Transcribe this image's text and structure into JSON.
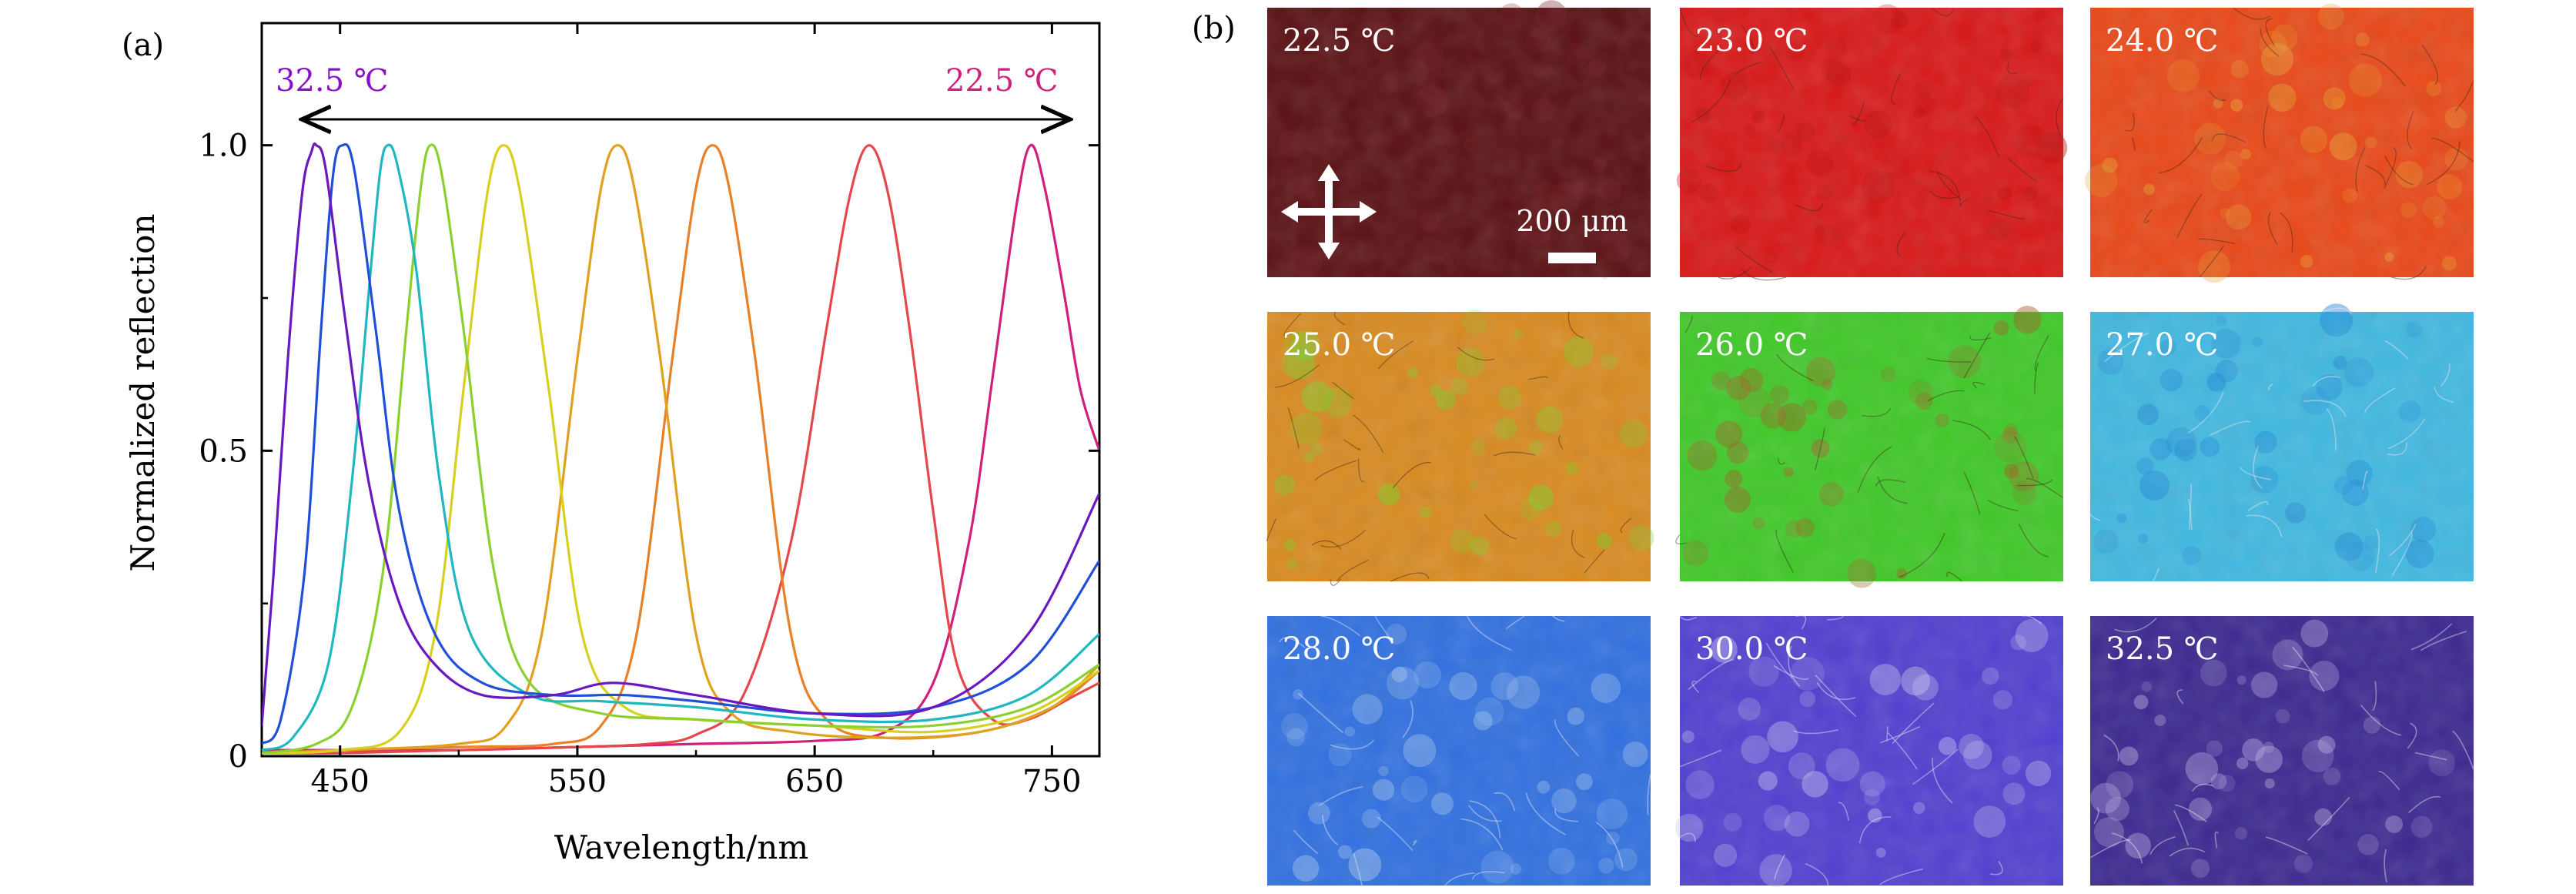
{
  "panel_a": {
    "label": "(a)",
    "annotation_left": "32.5 ℃",
    "annotation_right": "22.5 ℃",
    "annotation_left_color": "#8A10C8",
    "annotation_right_color": "#D0207C"
  },
  "chart_data": {
    "type": "line",
    "xlabel": "Wavelength/nm",
    "ylabel": "Normalized reflection",
    "xlim": [
      417,
      770
    ],
    "ylim": [
      0,
      1.2
    ],
    "xticks": [
      450,
      550,
      650,
      750
    ],
    "yticks": [
      0,
      0.5,
      1.0
    ],
    "ytick_labels": [
      "0",
      "0.5",
      "1.0"
    ],
    "grid": false,
    "legend": "none",
    "series": [
      {
        "color": "#D0207C",
        "peak": 741,
        "width": 17,
        "tail_left": 0.01,
        "tail_right_start": 0.5,
        "bump": 0.0,
        "x": [
          417,
          450,
          500,
          550,
          600,
          650,
          680,
          700,
          715,
          725,
          735,
          741,
          747,
          755,
          762,
          770
        ],
        "y": [
          0.01,
          0.01,
          0.01,
          0.015,
          0.02,
          0.025,
          0.04,
          0.12,
          0.35,
          0.62,
          0.9,
          1.0,
          0.93,
          0.76,
          0.6,
          0.5
        ]
      },
      {
        "color": "#E5484A",
        "peak": 673,
        "x": [
          417,
          450,
          500,
          550,
          580,
          600,
          620,
          640,
          655,
          665,
          673,
          681,
          690,
          700,
          710,
          725,
          740,
          760,
          770
        ],
        "y": [
          0.005,
          0.005,
          0.01,
          0.015,
          0.02,
          0.035,
          0.1,
          0.35,
          0.7,
          0.92,
          1.0,
          0.92,
          0.7,
          0.4,
          0.15,
          0.06,
          0.06,
          0.1,
          0.12
        ]
      },
      {
        "color": "#E88028",
        "peak": 607,
        "x": [
          417,
          450,
          500,
          540,
          560,
          575,
          590,
          600,
          607,
          614,
          625,
          640,
          655,
          680,
          720,
          750,
          770
        ],
        "y": [
          0.005,
          0.01,
          0.015,
          0.02,
          0.05,
          0.2,
          0.65,
          0.93,
          1.0,
          0.93,
          0.65,
          0.2,
          0.06,
          0.03,
          0.04,
          0.08,
          0.14
        ]
      },
      {
        "color": "#E0A020",
        "peak": 567,
        "x": [
          417,
          450,
          500,
          520,
          535,
          550,
          560,
          567,
          574,
          585,
          600,
          615,
          640,
          680,
          720,
          750,
          770
        ],
        "y": [
          0.005,
          0.01,
          0.02,
          0.05,
          0.2,
          0.65,
          0.93,
          1.0,
          0.93,
          0.65,
          0.2,
          0.07,
          0.04,
          0.03,
          0.04,
          0.08,
          0.15
        ]
      },
      {
        "color": "#D8D020",
        "peak": 519,
        "x": [
          417,
          450,
          475,
          490,
          502,
          512,
          519,
          526,
          538,
          552,
          570,
          600,
          650,
          700,
          740,
          770
        ],
        "y": [
          0.005,
          0.01,
          0.04,
          0.2,
          0.6,
          0.92,
          1.0,
          0.92,
          0.6,
          0.2,
          0.08,
          0.06,
          0.05,
          0.04,
          0.07,
          0.14
        ]
      },
      {
        "color": "#8CD030",
        "peak": 488,
        "x": [
          417,
          440,
          455,
          468,
          478,
          484,
          488,
          493,
          502,
          515,
          530,
          560,
          600,
          650,
          700,
          740,
          770
        ],
        "y": [
          0.005,
          0.02,
          0.08,
          0.3,
          0.7,
          0.93,
          1.0,
          0.95,
          0.7,
          0.3,
          0.12,
          0.07,
          0.06,
          0.05,
          0.05,
          0.08,
          0.15
        ]
      },
      {
        "color": "#20B8C0",
        "peak": 470,
        "x": [
          417,
          430,
          445,
          455,
          463,
          467,
          470,
          474,
          482,
          492,
          505,
          530,
          560,
          600,
          650,
          700,
          740,
          770
        ],
        "y": [
          0.01,
          0.03,
          0.15,
          0.45,
          0.8,
          0.96,
          1.0,
          0.97,
          0.8,
          0.45,
          0.2,
          0.1,
          0.09,
          0.08,
          0.06,
          0.06,
          0.1,
          0.2
        ]
      },
      {
        "color": "#2050D8",
        "peak": 451,
        "x": [
          417,
          425,
          435,
          442,
          447,
          451,
          456,
          465,
          475,
          490,
          510,
          540,
          570,
          600,
          650,
          700,
          740,
          770
        ],
        "y": [
          0.02,
          0.06,
          0.3,
          0.7,
          0.95,
          1.0,
          0.96,
          0.7,
          0.4,
          0.2,
          0.12,
          0.1,
          0.1,
          0.09,
          0.07,
          0.08,
          0.15,
          0.32
        ]
      },
      {
        "color": "#6A18C0",
        "peak": 440,
        "x": [
          417,
          422,
          428,
          434,
          438,
          440,
          444,
          452,
          462,
          475,
          490,
          510,
          540,
          565,
          600,
          650,
          700,
          740,
          770
        ],
        "y": [
          0.05,
          0.3,
          0.65,
          0.92,
          0.99,
          1.0,
          0.96,
          0.72,
          0.45,
          0.25,
          0.15,
          0.1,
          0.1,
          0.12,
          0.1,
          0.07,
          0.08,
          0.2,
          0.43
        ]
      }
    ]
  },
  "panel_b": {
    "label": "(b)",
    "scale_bar_label": "200 μm",
    "crosshair_icon": "polarizer-crosshair-icon",
    "tiles": [
      {
        "temp": "22.5 ℃",
        "color": "#5A1014",
        "accent": "#6E1A1E"
      },
      {
        "temp": "23.0 ℃",
        "color": "#D81818",
        "accent": "#C01010"
      },
      {
        "temp": "24.0 ℃",
        "color": "#E84818",
        "accent": "#E8A030"
      },
      {
        "temp": "25.0 ℃",
        "color": "#D88A20",
        "accent": "#7AD028"
      },
      {
        "temp": "26.0 ℃",
        "color": "#40C828",
        "accent": "#A06020"
      },
      {
        "temp": "27.0 ℃",
        "color": "#40B8E0",
        "accent": "#2088D8"
      },
      {
        "temp": "28.0 ℃",
        "color": "#3070E0",
        "accent": "#A8C8F0"
      },
      {
        "temp": "30.0 ℃",
        "color": "#5040D0",
        "accent": "#C8C0F0"
      },
      {
        "temp": "32.5 ℃",
        "color": "#3C2890",
        "accent": "#B8A8E0"
      }
    ]
  }
}
